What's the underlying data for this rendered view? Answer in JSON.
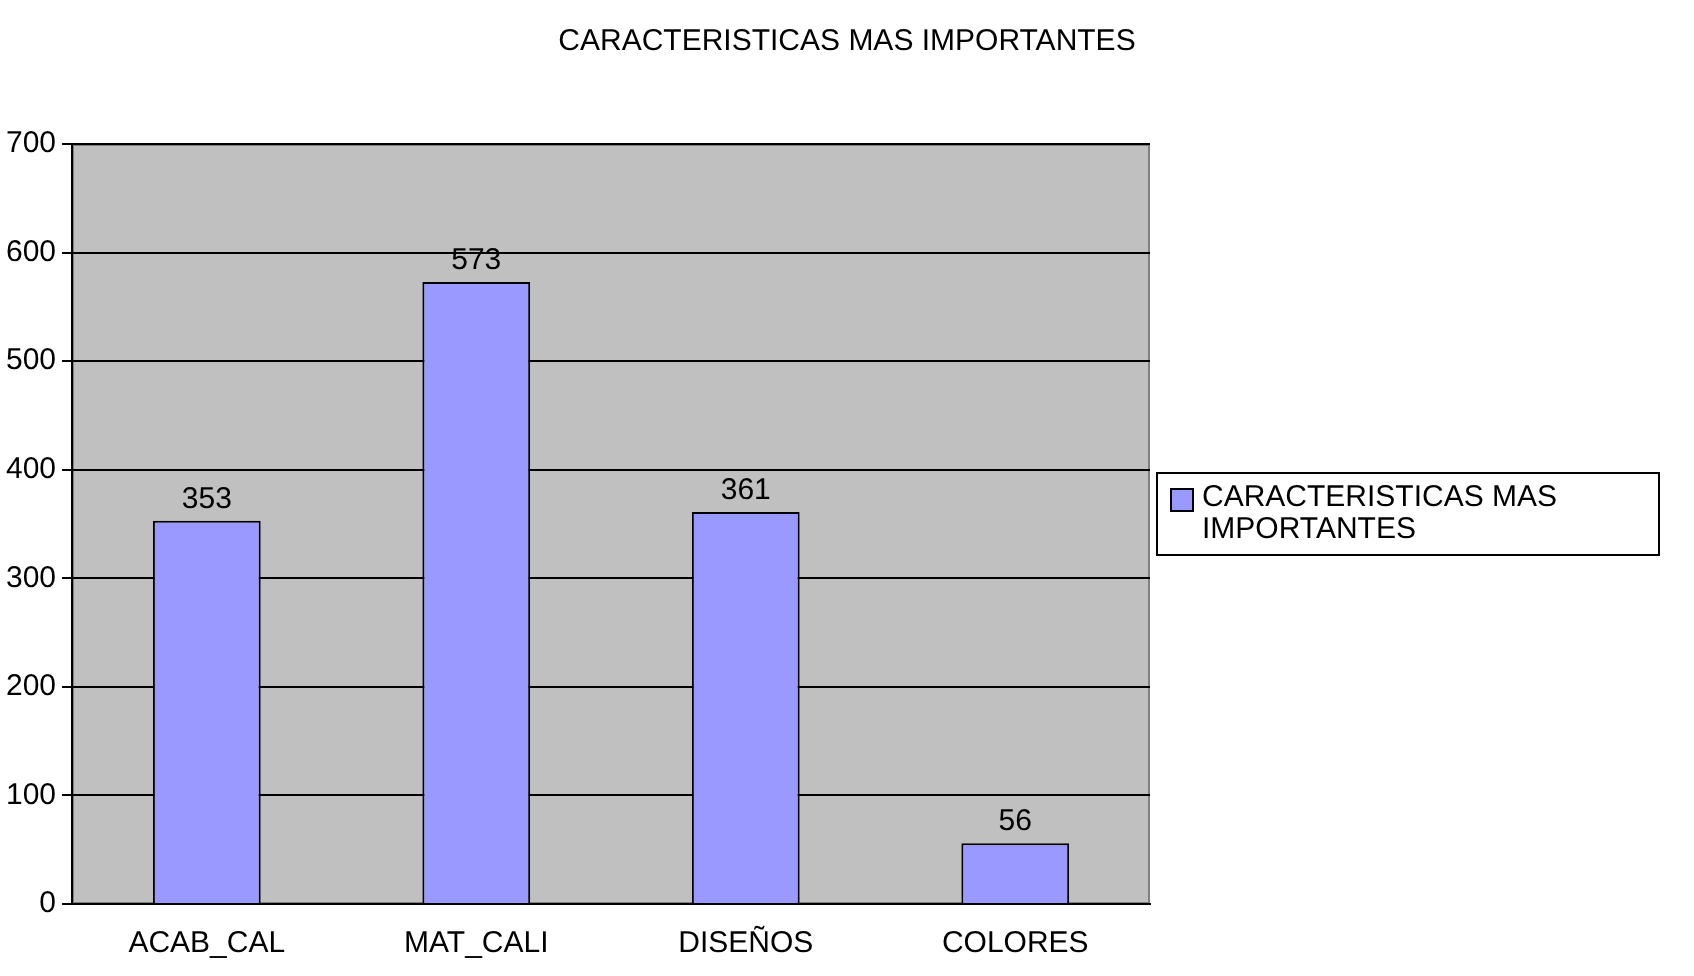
{
  "chart_data": {
    "type": "bar",
    "title": "CARACTERISTICAS MAS IMPORTANTES",
    "categories": [
      "ACAB_CAL",
      "MAT_CALI",
      "DISEÑOS",
      "COLORES"
    ],
    "series": [
      {
        "name": "CARACTERISTICAS MAS IMPORTANTES",
        "color": "#9999ff",
        "values": [
          353,
          573,
          361,
          56
        ]
      }
    ],
    "ylim": [
      0,
      700
    ],
    "yticks": [
      0,
      100,
      200,
      300,
      400,
      500,
      600,
      700
    ],
    "grid": "y",
    "legend": "right",
    "data_labels": true
  }
}
